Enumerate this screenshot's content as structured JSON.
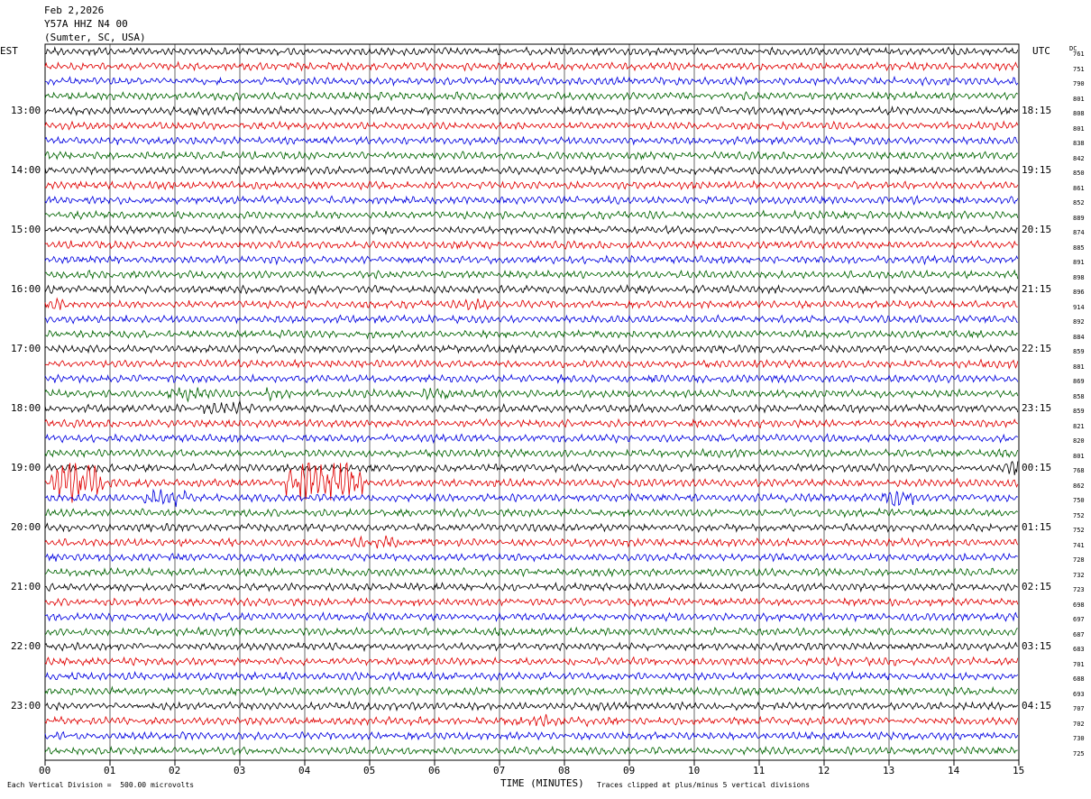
{
  "header": {
    "date": "Feb 2,2026",
    "station": "Y57A HHZ N4 00",
    "location": "(Sumter, SC, USA)"
  },
  "left_zone": "EST",
  "right_zone": "UTC",
  "dc_header": "DC",
  "footer": {
    "scale_note": "Each Vertical Division =  500.00 microvolts",
    "clip_note": "Traces clipped at plus/minus 5 vertical divisions",
    "x_title": "TIME (MINUTES)"
  },
  "colors": {
    "black": "#000000",
    "red": "#e00000",
    "blue": "#0000e0",
    "green": "#006400"
  },
  "chart_data": {
    "type": "line",
    "title": "Y57A HHZ N4 00 (Sumter, SC, USA) Feb 2,2026",
    "xlabel": "TIME (MINUTES)",
    "x_ticks": [
      "00",
      "01",
      "02",
      "03",
      "04",
      "05",
      "06",
      "07",
      "08",
      "09",
      "10",
      "11",
      "12",
      "13",
      "14",
      "15"
    ],
    "xlim": [
      0,
      15
    ],
    "left_hour_labels": [
      "13:00",
      "14:00",
      "15:00",
      "16:00",
      "17:00",
      "18:00",
      "19:00",
      "20:00",
      "21:00",
      "22:00",
      "23:00"
    ],
    "right_hour_labels": [
      "18:15",
      "19:15",
      "20:15",
      "21:15",
      "22:15",
      "23:15",
      "00:15",
      "01:15",
      "02:15",
      "03:15",
      "04:15"
    ],
    "trace_colors": [
      "black",
      "red",
      "blue",
      "green"
    ],
    "dc_offsets": [
      761,
      751,
      790,
      801,
      808,
      801,
      838,
      842,
      850,
      861,
      852,
      889,
      874,
      885,
      891,
      898,
      896,
      914,
      892,
      884,
      859,
      881,
      869,
      858,
      859,
      821,
      820,
      801,
      768,
      862,
      750,
      752,
      752,
      741,
      728,
      732,
      723,
      698,
      697,
      687,
      683,
      701,
      688,
      693,
      707,
      702,
      730,
      725
    ],
    "events": [
      {
        "trace": 29,
        "x_min": [
          0.1,
          0.9
        ],
        "amp": "clipped"
      },
      {
        "trace": 29,
        "x_min": [
          3.7,
          4.9
        ],
        "amp": "clipped"
      },
      {
        "trace": 30,
        "x_min": [
          1.5,
          2.2
        ],
        "amp": "high"
      },
      {
        "trace": 30,
        "x_min": [
          12.9,
          13.4
        ],
        "amp": "high"
      },
      {
        "trace": 28,
        "x_min": [
          14.8,
          15.0
        ],
        "amp": "high"
      },
      {
        "trace": 23,
        "x_min": [
          1.8,
          2.7
        ],
        "amp": "medium"
      },
      {
        "trace": 23,
        "x_min": [
          3.3,
          3.9
        ],
        "amp": "medium"
      },
      {
        "trace": 23,
        "x_min": [
          5.8,
          6.4
        ],
        "amp": "medium"
      },
      {
        "trace": 24,
        "x_min": [
          2.4,
          3.2
        ],
        "amp": "medium"
      },
      {
        "trace": 17,
        "x_min": [
          0.0,
          0.4
        ],
        "amp": "medium"
      },
      {
        "trace": 17,
        "x_min": [
          6.4,
          6.9
        ],
        "amp": "medium"
      },
      {
        "trace": 33,
        "x_min": [
          4.7,
          5.5
        ],
        "amp": "medium"
      },
      {
        "trace": 45,
        "x_min": [
          7.0,
          8.4
        ],
        "amp": "low"
      }
    ]
  }
}
